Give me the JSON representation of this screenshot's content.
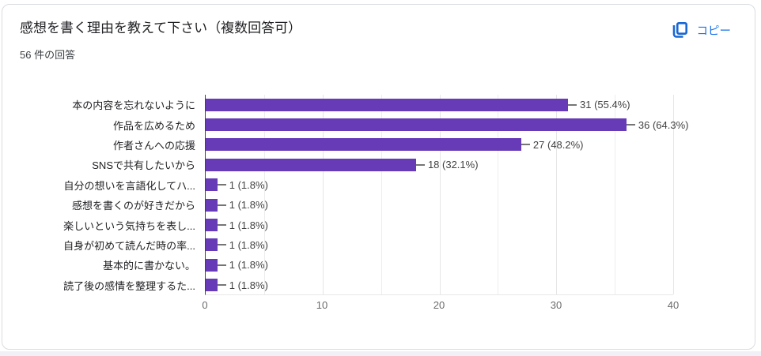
{
  "page": {
    "card_background": "#ffffff",
    "card_border_color": "#dadce0",
    "accent_blue": "#1a73e8"
  },
  "header": {
    "title": "感想を書く理由を教えて下さい（複数回答可）",
    "response_count": "56 件の回答",
    "copy_label": "コピー"
  },
  "chart_data": {
    "type": "bar",
    "orientation": "horizontal",
    "title": "感想を書く理由を教えて下さい（複数回答可）",
    "categories": [
      "本の内容を忘れないように",
      "作品を広めるため",
      "作者さんへの応援",
      "SNSで共有したいから",
      "自分の想いを言語化してハ...",
      "感想を書くのが好きだから",
      "楽しいという気持ちを表し...",
      "自身が初めて読んだ時の率...",
      "基本的に書かない。",
      "読了後の感情を整理するた..."
    ],
    "values": [
      31,
      36,
      27,
      18,
      1,
      1,
      1,
      1,
      1,
      1
    ],
    "value_labels": [
      "31 (55.4%)",
      "36 (64.3%)",
      "27 (48.2%)",
      "18 (32.1%)",
      "1 (1.8%)",
      "1 (1.8%)",
      "1 (1.8%)",
      "1 (1.8%)",
      "1 (1.8%)",
      "1 (1.8%)"
    ],
    "xlim": [
      0,
      40
    ],
    "x_ticks": [
      "0",
      "10",
      "20",
      "30",
      "40"
    ],
    "grid": true,
    "gridline_step": 5,
    "legend": "none",
    "bar_color": "#673ab7",
    "axis_line_color": "#424242",
    "gridline_color": "#ededed",
    "connector_color": "#757575"
  }
}
